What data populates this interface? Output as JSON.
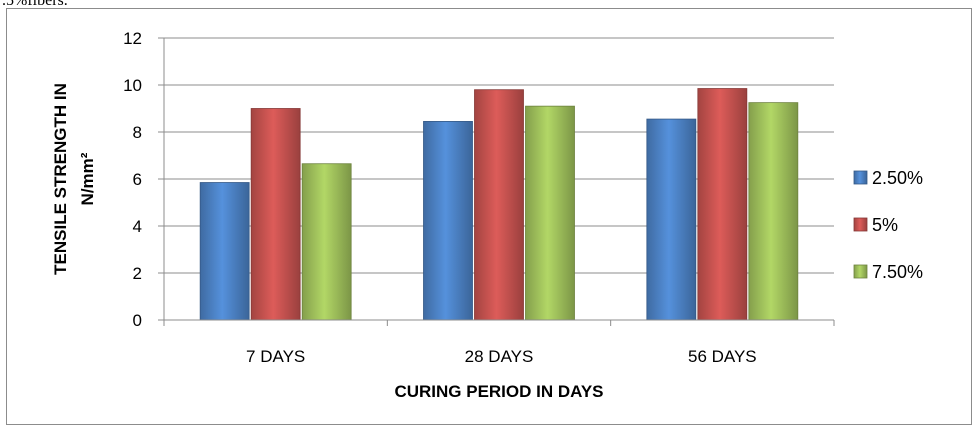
{
  "page": {
    "cut_caption": ".5%fibers."
  },
  "chart_data": {
    "type": "bar",
    "categories": [
      "7 DAYS",
      "28 DAYS",
      "56 DAYS"
    ],
    "series": [
      {
        "name": "2.50%",
        "values": [
          5.85,
          8.45,
          8.55
        ],
        "color": "#4a7ebf"
      },
      {
        "name": "5%",
        "values": [
          9.0,
          9.8,
          9.85
        ],
        "color": "#c0504d"
      },
      {
        "name": "7.50%",
        "values": [
          6.65,
          9.1,
          9.25
        ],
        "color": "#9bbb59"
      }
    ],
    "title": "",
    "xlabel": "CURING PERIOD IN DAYS",
    "ylabel_line1": "TENSILE  STRENGTH IN",
    "ylabel_line2": "N/mm²",
    "ylim": [
      0,
      12
    ],
    "yticks": [
      "0",
      "2",
      "4",
      "6",
      "8",
      "10",
      "12"
    ],
    "grid": true,
    "legend_position": "right"
  }
}
